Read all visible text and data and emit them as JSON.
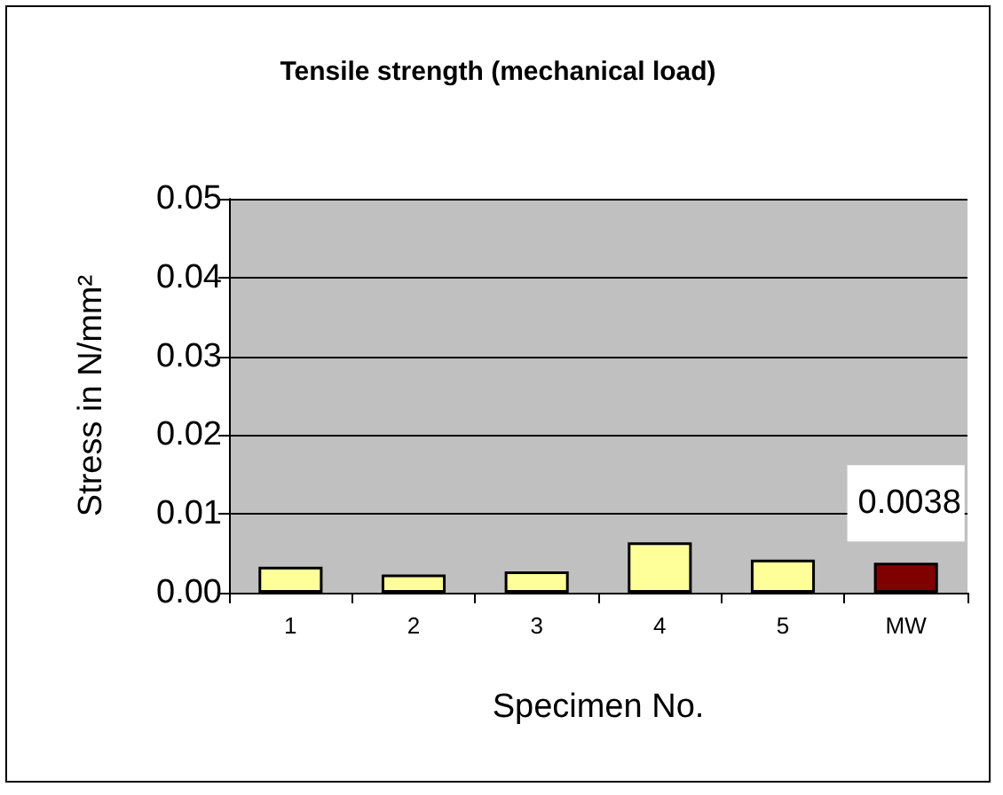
{
  "chart_data": {
    "type": "bar",
    "title": "Tensile strength (mechanical load)",
    "xlabel": "Specimen No.",
    "ylabel": "Stress in N/mm²",
    "categories": [
      "1",
      "2",
      "3",
      "4",
      "5",
      "MW"
    ],
    "values": [
      0.0033,
      0.0023,
      0.0027,
      0.0064,
      0.0042,
      0.0038
    ],
    "colors": [
      "#ffff99",
      "#ffff99",
      "#ffff99",
      "#ffff99",
      "#ffff99",
      "#800000"
    ],
    "value_labels": [
      null,
      null,
      null,
      null,
      null,
      "0.0038"
    ],
    "ylim": [
      0,
      0.05
    ],
    "yticks": [
      {
        "value": 0,
        "label": "0.00"
      },
      {
        "value": 0.01,
        "label": "0.01"
      },
      {
        "value": 0.02,
        "label": "0.02"
      },
      {
        "value": 0.03,
        "label": "0.03"
      },
      {
        "value": 0.04,
        "label": "0.04"
      },
      {
        "value": 0.05,
        "label": "0.05"
      }
    ],
    "grid": "y"
  }
}
